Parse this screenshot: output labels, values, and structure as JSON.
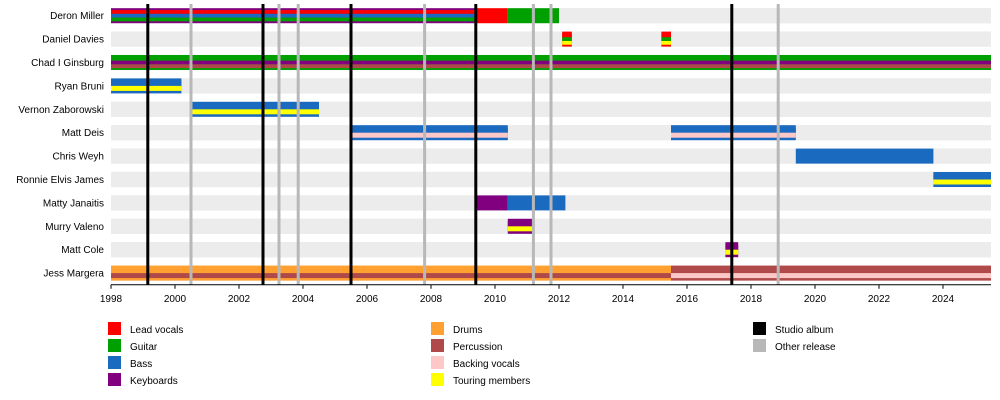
{
  "chart_data": {
    "type": "timeline",
    "title": "",
    "x_range": [
      1998,
      2025.5
    ],
    "x_ticks": [
      "1998",
      "2000",
      "2002",
      "2004",
      "2006",
      "2008",
      "2010",
      "2012",
      "2014",
      "2016",
      "2018",
      "2020",
      "2022",
      "2024"
    ],
    "members": [
      {
        "name": "Deron Miller",
        "segments": [
          {
            "start": 1998,
            "end": 2009.4,
            "roles": [
              "Lead vocals",
              "Bass",
              "Guitar"
            ],
            "base": "Keyboards"
          },
          {
            "start": 2009.4,
            "end": 2010.4,
            "roles": [
              "Lead vocals"
            ]
          },
          {
            "start": 2010.4,
            "end": 2012.0,
            "roles": [
              "Guitar"
            ]
          }
        ]
      },
      {
        "name": "Daniel Davies",
        "segments": [
          {
            "start": 2012.1,
            "end": 2012.4,
            "roles": [
              "Lead vocals",
              "Guitar",
              "Touring members"
            ]
          },
          {
            "start": 2015.2,
            "end": 2015.5,
            "roles": [
              "Lead vocals",
              "Guitar",
              "Touring members"
            ]
          }
        ]
      },
      {
        "name": "Chad I Ginsburg",
        "segments": [
          {
            "start": 1998,
            "end": 2025.5,
            "roles": [
              "Guitar",
              "Keyboards",
              "Percussion"
            ]
          }
        ]
      },
      {
        "name": "Ryan Bruni",
        "segments": [
          {
            "start": 1998,
            "end": 2000.2,
            "roles": [
              "Bass",
              "Touring members"
            ]
          }
        ]
      },
      {
        "name": "Vernon Zaborowski",
        "segments": [
          {
            "start": 2000.5,
            "end": 2004.5,
            "roles": [
              "Bass",
              "Touring members"
            ]
          }
        ]
      },
      {
        "name": "Matt Deis",
        "segments": [
          {
            "start": 2005.5,
            "end": 2010.4,
            "roles": [
              "Bass",
              "Backing vocals"
            ]
          },
          {
            "start": 2015.5,
            "end": 2019.4,
            "roles": [
              "Bass",
              "Backing vocals"
            ]
          }
        ]
      },
      {
        "name": "Chris Weyh",
        "segments": [
          {
            "start": 2019.4,
            "end": 2023.7,
            "roles": [
              "Bass"
            ]
          }
        ]
      },
      {
        "name": "Ronnie Elvis James",
        "segments": [
          {
            "start": 2023.7,
            "end": 2025.5,
            "roles": [
              "Bass",
              "Touring members"
            ]
          }
        ]
      },
      {
        "name": "Matty Janaitis",
        "segments": [
          {
            "start": 2009.4,
            "end": 2010.4,
            "roles": [
              "Keyboards"
            ]
          },
          {
            "start": 2010.4,
            "end": 2012.2,
            "roles": [
              "Bass"
            ]
          }
        ]
      },
      {
        "name": "Murry Valeno",
        "segments": [
          {
            "start": 2010.4,
            "end": 2011.2,
            "roles": [
              "Keyboards",
              "Touring members"
            ]
          }
        ]
      },
      {
        "name": "Matt Cole",
        "segments": [
          {
            "start": 2017.2,
            "end": 2017.6,
            "roles": [
              "Keyboards",
              "Touring members"
            ]
          }
        ]
      },
      {
        "name": "Jess Margera",
        "segments": [
          {
            "start": 1998,
            "end": 2015.5,
            "roles": [
              "Drums",
              "Percussion"
            ]
          },
          {
            "start": 2015.5,
            "end": 2025.5,
            "roles": [
              "Percussion",
              "Backing vocals"
            ]
          }
        ]
      }
    ],
    "studio_albums": [
      1999.15,
      2002.75,
      2005.5,
      2009.4,
      2017.4
    ],
    "other_releases": [
      2000.5,
      2003.25,
      2003.85,
      2007.8,
      2011.2,
      2011.75,
      2018.85
    ],
    "legend": [
      {
        "label": "Lead vocals",
        "color": "#ff0000"
      },
      {
        "label": "Guitar",
        "color": "#00a000"
      },
      {
        "label": "Bass",
        "color": "#1a6ac0"
      },
      {
        "label": "Keyboards",
        "color": "#800080"
      },
      {
        "label": "Drums",
        "color": "#ffa030"
      },
      {
        "label": "Percussion",
        "color": "#b04a4a"
      },
      {
        "label": "Backing vocals",
        "color": "#ffc8c8"
      },
      {
        "label": "Touring members",
        "color": "#ffff00"
      },
      {
        "label": "Studio album",
        "color": "#000000"
      },
      {
        "label": "Other release",
        "color": "#b8b8b8"
      }
    ]
  }
}
